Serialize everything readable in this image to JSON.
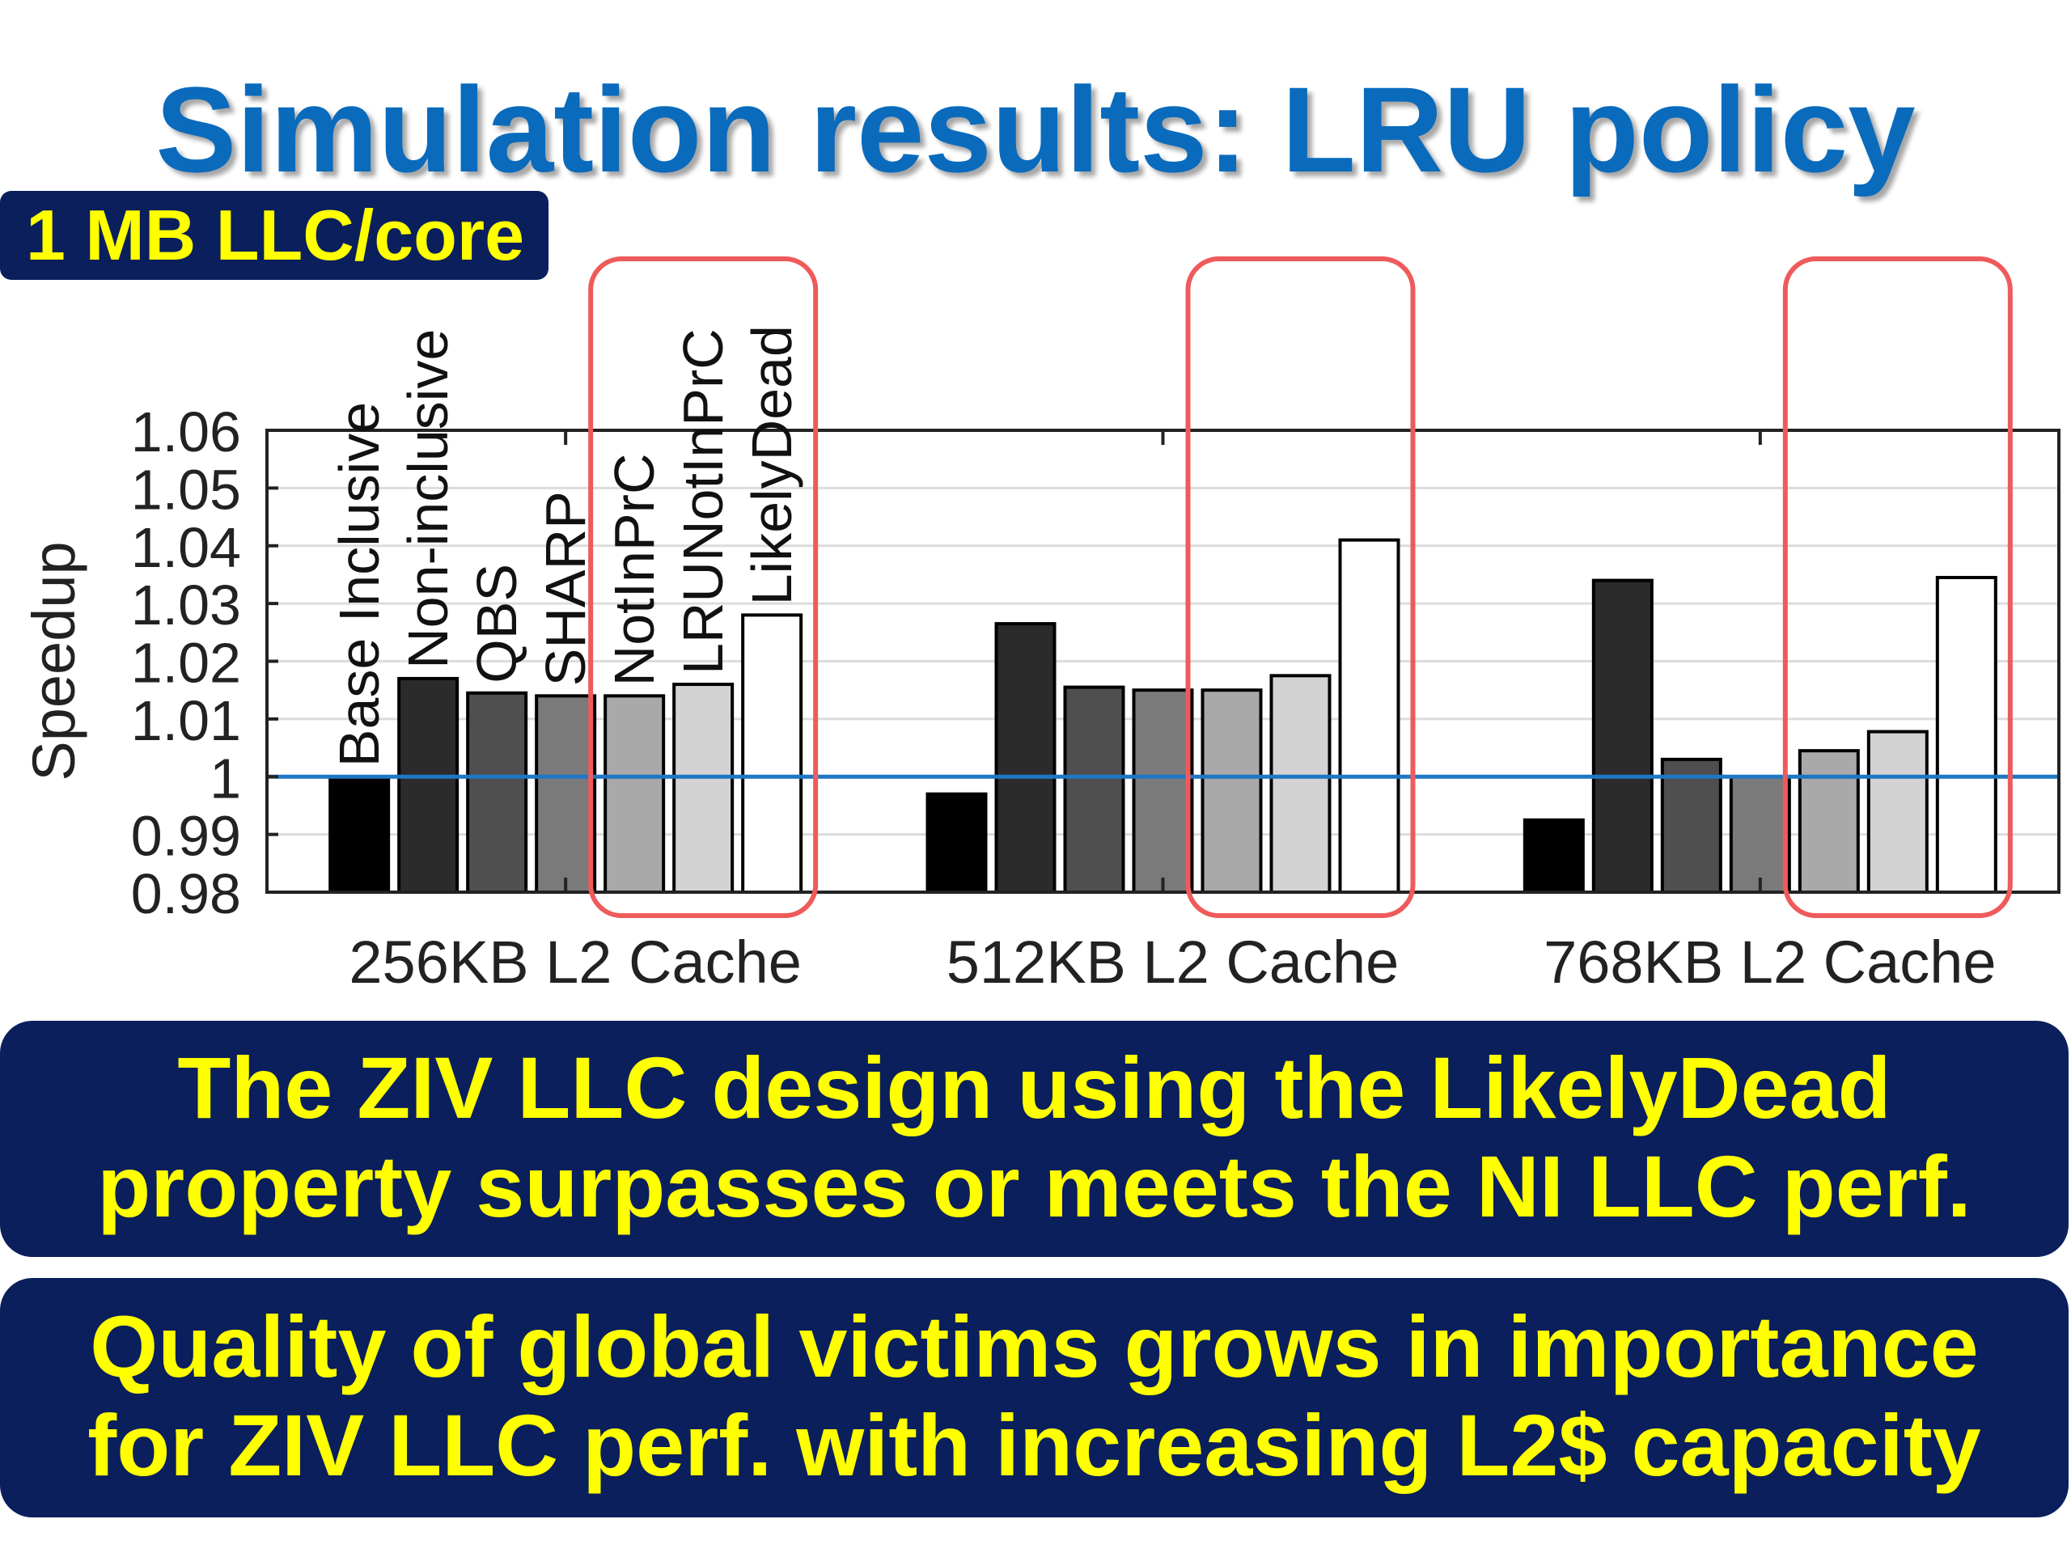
{
  "title": "Simulation results: LRU policy",
  "badge": "1 MB LLC/core",
  "callouts": [
    [
      "The ZIV LLC design using the LikelyDead",
      "property surpasses or meets the NI LLC perf."
    ],
    [
      "Quality of global victims grows in importance",
      "for ZIV LLC perf. with increasing L2$ capacity"
    ]
  ],
  "colors": {
    "title": "#0a6bbd",
    "callout_bg": "#0a1f5c",
    "callout_text": "#ffff00",
    "baseline": "#1f77c4",
    "highlight_box": "#ef5a5a"
  },
  "chart_data": {
    "type": "bar",
    "title": "",
    "xlabel": "",
    "ylabel": "Speedup",
    "ylim": [
      0.98,
      1.06
    ],
    "yticks": [
      0.98,
      0.99,
      1,
      1.01,
      1.02,
      1.03,
      1.04,
      1.05,
      1.06
    ],
    "ytick_labels": [
      "0.98",
      "0.99",
      "1",
      "1.01",
      "1.02",
      "1.03",
      "1.04",
      "1.05",
      "1.06"
    ],
    "grid": true,
    "baseline": 1,
    "categories": [
      "256KB L2 Cache",
      "512KB L2 Cache",
      "768KB L2 Cache"
    ],
    "legend_placement": "rotated labels above first group",
    "series": [
      {
        "name": "Base Inclusive",
        "color": "#000000",
        "values": [
          1.0,
          0.997,
          0.9925
        ]
      },
      {
        "name": "Non-inclusive",
        "color": "#2b2b2b",
        "values": [
          1.017,
          1.0265,
          1.034
        ]
      },
      {
        "name": "QBS",
        "color": "#4f4f4f",
        "values": [
          1.0145,
          1.0155,
          1.003
        ]
      },
      {
        "name": "SHARP",
        "color": "#7a7a7a",
        "values": [
          1.014,
          1.015,
          1.0
        ]
      },
      {
        "name": "NotInPrC",
        "color": "#a9a9a9",
        "values": [
          1.014,
          1.015,
          1.0045
        ]
      },
      {
        "name": "LRUNotInPrC",
        "color": "#d3d3d3",
        "values": [
          1.016,
          1.0175,
          1.0078
        ]
      },
      {
        "name": "LikelyDead",
        "color": "#ffffff",
        "values": [
          1.028,
          1.041,
          1.0345
        ]
      }
    ],
    "highlighted_series": [
      "NotInPrC",
      "LRUNotInPrC",
      "LikelyDead"
    ]
  }
}
